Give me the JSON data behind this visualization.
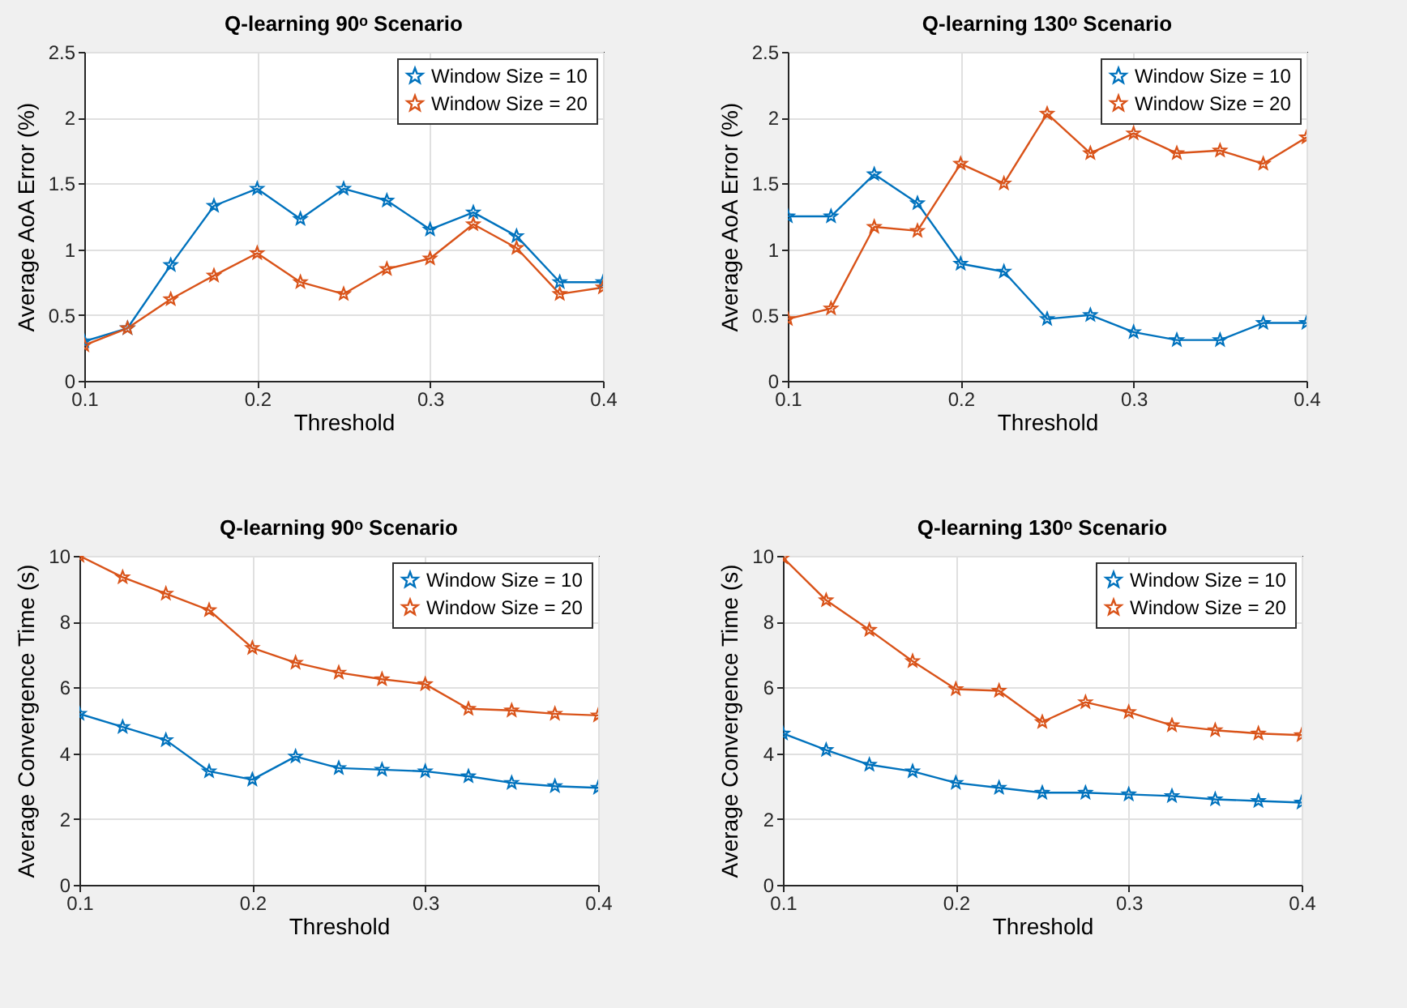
{
  "chart_data": [
    {
      "type": "line",
      "title": "Q-learning 90ᵒ Scenario",
      "xlabel": "Threshold",
      "ylabel": "Average AoA Error (%)",
      "x": [
        0.1,
        0.125,
        0.15,
        0.175,
        0.2,
        0.225,
        0.25,
        0.275,
        0.3,
        0.325,
        0.35,
        0.375,
        0.4
      ],
      "xlim": [
        0.1,
        0.4
      ],
      "xticks": [
        0.1,
        0.2,
        0.3,
        0.4
      ],
      "ylim": [
        0,
        2.5
      ],
      "yticks": [
        0,
        0.5,
        1,
        1.5,
        2,
        2.5
      ],
      "grid": true,
      "legend": "top right",
      "marker": "star",
      "line_style": "solid",
      "series": [
        {
          "name": "Window Size = 10",
          "color": "#0072bd",
          "values": [
            0.3,
            0.4,
            0.88,
            1.33,
            1.46,
            1.23,
            1.46,
            1.37,
            1.15,
            1.28,
            1.1,
            0.75,
            0.75
          ]
        },
        {
          "name": "Window Size = 20",
          "color": "#d95319",
          "values": [
            0.27,
            0.4,
            0.62,
            0.8,
            0.97,
            0.75,
            0.66,
            0.85,
            0.93,
            1.19,
            1.01,
            0.66,
            0.71
          ]
        }
      ]
    },
    {
      "type": "line",
      "title": "Q-learning 130ᵒ Scenario",
      "xlabel": "Threshold",
      "ylabel": "Average AoA Error (%)",
      "x": [
        0.1,
        0.125,
        0.15,
        0.175,
        0.2,
        0.225,
        0.25,
        0.275,
        0.3,
        0.325,
        0.35,
        0.375,
        0.4
      ],
      "xlim": [
        0.1,
        0.4
      ],
      "xticks": [
        0.1,
        0.2,
        0.3,
        0.4
      ],
      "ylim": [
        0,
        2.5
      ],
      "yticks": [
        0,
        0.5,
        1,
        1.5,
        2,
        2.5
      ],
      "grid": true,
      "legend": "top right",
      "marker": "star",
      "line_style": "solid",
      "series": [
        {
          "name": "Window Size = 10",
          "color": "#0072bd",
          "values": [
            1.25,
            1.25,
            1.57,
            1.35,
            0.89,
            0.83,
            0.47,
            0.5,
            0.37,
            0.31,
            0.31,
            0.44,
            0.44
          ]
        },
        {
          "name": "Window Size = 20",
          "color": "#d95319",
          "values": [
            0.47,
            0.55,
            1.17,
            1.14,
            1.65,
            1.5,
            2.03,
            1.73,
            1.88,
            1.73,
            1.75,
            1.65,
            1.85
          ]
        }
      ]
    },
    {
      "type": "line",
      "title": "Q-learning 90ᵒ Scenario",
      "xlabel": "Threshold",
      "ylabel": "Average Convergence Time (s)",
      "x": [
        0.1,
        0.125,
        0.15,
        0.175,
        0.2,
        0.225,
        0.25,
        0.275,
        0.3,
        0.325,
        0.35,
        0.375,
        0.4
      ],
      "xlim": [
        0.1,
        0.4
      ],
      "xticks": [
        0.1,
        0.2,
        0.3,
        0.4
      ],
      "ylim": [
        0,
        10
      ],
      "yticks": [
        0,
        2,
        4,
        6,
        8,
        10
      ],
      "grid": true,
      "legend": "top right",
      "marker": "star",
      "line_style": "solid",
      "series": [
        {
          "name": "Window Size = 10",
          "color": "#0072bd",
          "values": [
            5.2,
            4.8,
            4.4,
            3.45,
            3.2,
            3.9,
            3.55,
            3.5,
            3.45,
            3.3,
            3.1,
            3.0,
            2.95
          ]
        },
        {
          "name": "Window Size = 20",
          "color": "#d95319",
          "values": [
            10,
            9.35,
            8.85,
            8.35,
            7.2,
            6.75,
            6.45,
            6.25,
            6.1,
            5.35,
            5.3,
            5.2,
            5.15
          ]
        }
      ]
    },
    {
      "type": "line",
      "title": "Q-learning 130ᵒ Scenario",
      "xlabel": "Threshold",
      "ylabel": "Average Convergence Time (s)",
      "x": [
        0.1,
        0.125,
        0.15,
        0.175,
        0.2,
        0.225,
        0.25,
        0.275,
        0.3,
        0.325,
        0.35,
        0.375,
        0.4
      ],
      "xlim": [
        0.1,
        0.4
      ],
      "xticks": [
        0.1,
        0.2,
        0.3,
        0.4
      ],
      "ylim": [
        0,
        10
      ],
      "yticks": [
        0,
        2,
        4,
        6,
        8,
        10
      ],
      "grid": true,
      "legend": "top right",
      "marker": "star",
      "line_style": "solid",
      "series": [
        {
          "name": "Window Size = 10",
          "color": "#0072bd",
          "values": [
            4.6,
            4.1,
            3.65,
            3.45,
            3.1,
            2.95,
            2.8,
            2.8,
            2.75,
            2.7,
            2.6,
            2.55,
            2.5
          ]
        },
        {
          "name": "Window Size = 20",
          "color": "#d95319",
          "values": [
            9.95,
            8.65,
            7.75,
            6.8,
            5.95,
            5.9,
            4.95,
            5.55,
            5.25,
            4.85,
            4.7,
            4.6,
            4.55
          ]
        }
      ]
    }
  ]
}
